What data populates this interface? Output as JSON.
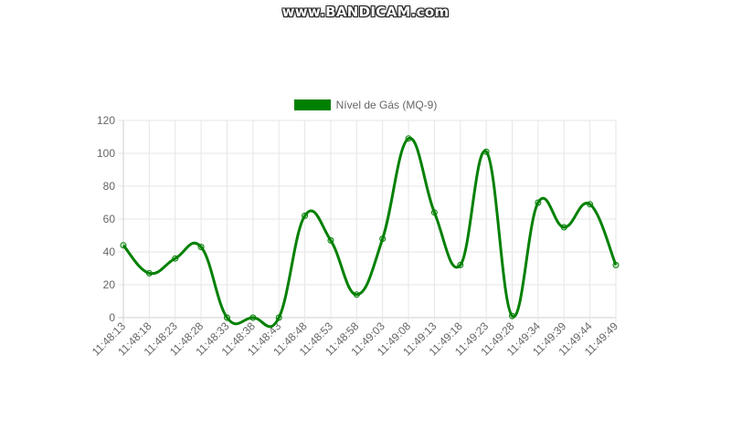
{
  "watermark": "www.BANDICAM.com",
  "chart_data": {
    "type": "line",
    "title": "",
    "xlabel": "",
    "ylabel": "",
    "ylim": [
      0,
      120
    ],
    "yticks": [
      0,
      20,
      40,
      60,
      80,
      100,
      120
    ],
    "grid": true,
    "legend_position": "top",
    "categories": [
      "11:48:13",
      "11:48:18",
      "11:48:23",
      "11:48:28",
      "11:48:33",
      "11:48:38",
      "11:48:43",
      "11:48:48",
      "11:48:53",
      "11:48:58",
      "11:49:03",
      "11:49:08",
      "11:49:13",
      "11:49:18",
      "11:49:23",
      "11:49:28",
      "11:49:34",
      "11:49:39",
      "11:49:44",
      "11:49:49"
    ],
    "series": [
      {
        "name": "Nível de Gás (MQ-9)",
        "color": "#008000",
        "values": [
          44,
          27,
          36,
          43,
          0,
          0,
          0,
          62,
          47,
          14,
          48,
          109,
          64,
          32,
          101,
          1,
          70,
          55,
          69,
          32
        ]
      }
    ]
  }
}
